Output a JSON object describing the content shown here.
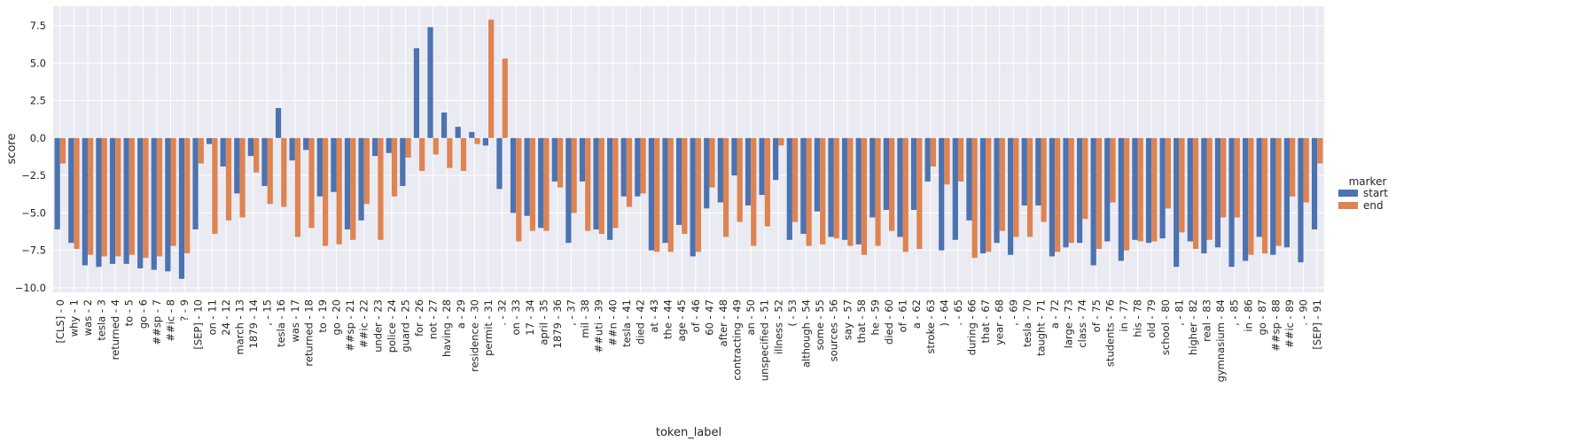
{
  "chart_data": {
    "type": "bar",
    "xlabel": "token_label",
    "ylabel": "score",
    "ylim": [
      -10.3,
      8.8
    ],
    "yticks": [
      -10.0,
      -7.5,
      -5.0,
      -2.5,
      0.0,
      2.5,
      5.0,
      7.5
    ],
    "ytick_labels": [
      "−10.0",
      "−7.5",
      "−5.0",
      "−2.5",
      "0.0",
      "2.5",
      "5.0",
      "7.5"
    ],
    "grid": true,
    "legend_position": "right",
    "legend_title": "marker",
    "categories": [
      "[CLS] - 0",
      "why - 1",
      "was - 2",
      "tesla - 3",
      "returned - 4",
      "to - 5",
      "go - 6",
      "##sp - 7",
      "##ic - 8",
      "? - 9",
      "[SEP] - 10",
      "on - 11",
      "24 - 12",
      "march - 13",
      "1879 - 14",
      ", - 15",
      "tesla - 16",
      "was - 17",
      "returned - 18",
      "to - 19",
      "go - 20",
      "##sp - 21",
      "##ic - 22",
      "under - 23",
      "police - 24",
      "guard - 25",
      "for - 26",
      "not - 27",
      "having - 28",
      "a - 29",
      "residence - 30",
      "permit - 31",
      ". - 32",
      "on - 33",
      "17 - 34",
      "april - 35",
      "1879 - 36",
      ", - 37",
      "mil - 38",
      "##uti - 39",
      "##n - 40",
      "tesla - 41",
      "died - 42",
      "at - 43",
      "the - 44",
      "age - 45",
      "of - 46",
      "60 - 47",
      "after - 48",
      "contracting - 49",
      "an - 50",
      "unspecified - 51",
      "illness - 52",
      "( - 53",
      "although - 54",
      "some - 55",
      "sources - 56",
      "say - 57",
      "that - 58",
      "he - 59",
      "died - 60",
      "of - 61",
      "a - 62",
      "stroke - 63",
      ") - 64",
      ". - 65",
      "during - 66",
      "that - 67",
      "year - 68",
      ", - 69",
      "tesla - 70",
      "taught - 71",
      "a - 72",
      "large - 73",
      "class - 74",
      "of - 75",
      "students - 76",
      "in - 77",
      "his - 78",
      "old - 79",
      "school - 80",
      ", - 81",
      "higher - 82",
      "real - 83",
      "gymnasium - 84",
      ", - 85",
      "in - 86",
      "go - 87",
      "##sp - 88",
      "##ic - 89",
      ". - 90",
      "[SEP] - 91"
    ],
    "series": [
      {
        "name": "start",
        "color": "#4c72b0",
        "values": [
          -6.1,
          -7.0,
          -8.5,
          -8.6,
          -8.4,
          -8.4,
          -8.7,
          -8.8,
          -8.9,
          -9.4,
          -6.1,
          -0.4,
          -1.9,
          -3.7,
          -1.2,
          -3.2,
          2.0,
          -1.5,
          -0.8,
          -3.9,
          -3.6,
          -6.1,
          -5.5,
          -1.2,
          -1.0,
          -3.2,
          6.0,
          7.4,
          1.7,
          0.75,
          0.4,
          -0.5,
          -3.4,
          -5.0,
          -5.2,
          -6.0,
          -2.9,
          -7.0,
          -2.9,
          -6.1,
          -6.8,
          -3.9,
          -3.9,
          -7.5,
          -7.0,
          -5.8,
          -7.9,
          -4.7,
          -4.3,
          -2.5,
          -4.5,
          -3.8,
          -2.8,
          -6.8,
          -6.4,
          -4.9,
          -6.6,
          -6.8,
          -7.1,
          -5.3,
          -4.8,
          -6.6,
          -4.8,
          -2.9,
          -7.5,
          -6.8,
          -5.5,
          -7.7,
          -7.0,
          -7.8,
          -4.5,
          -4.5,
          -7.9,
          -7.3,
          -7.0,
          -8.5,
          -6.9,
          -8.2,
          -6.8,
          -7.0,
          -6.7,
          -8.6,
          -6.9,
          -7.7,
          -7.3,
          -8.6,
          -8.2,
          -6.6,
          -7.8,
          -7.3,
          -8.3,
          -6.1
        ]
      },
      {
        "name": "end",
        "color": "#dd8452",
        "values": [
          -1.7,
          -7.4,
          -7.8,
          -7.9,
          -7.9,
          -7.8,
          -8.0,
          -7.9,
          -7.2,
          -7.7,
          -1.7,
          -6.4,
          -5.5,
          -5.3,
          -2.3,
          -4.4,
          -4.6,
          -6.6,
          -6.0,
          -7.2,
          -7.1,
          -6.8,
          -4.4,
          -6.8,
          -3.9,
          -1.3,
          -2.2,
          -1.1,
          -2.0,
          -2.2,
          -0.4,
          7.9,
          5.3,
          -6.9,
          -6.2,
          -6.2,
          -3.3,
          -5.0,
          -6.2,
          -6.4,
          -6.0,
          -4.6,
          -3.7,
          -7.6,
          -7.6,
          -6.4,
          -7.6,
          -3.3,
          -6.6,
          -5.6,
          -7.2,
          -5.9,
          -0.5,
          -5.6,
          -7.2,
          -7.1,
          -6.7,
          -7.2,
          -7.8,
          -7.2,
          -6.2,
          -7.6,
          -7.4,
          -1.9,
          -3.1,
          -2.9,
          -8.0,
          -7.6,
          -6.2,
          -6.6,
          -6.6,
          -5.6,
          -7.6,
          -7.0,
          -5.4,
          -7.4,
          -4.3,
          -7.5,
          -6.9,
          -6.9,
          -4.7,
          -6.3,
          -7.4,
          -6.8,
          -5.3,
          -5.3,
          -7.8,
          -7.7,
          -7.2,
          -3.9,
          -4.3,
          -1.7
        ]
      }
    ]
  }
}
